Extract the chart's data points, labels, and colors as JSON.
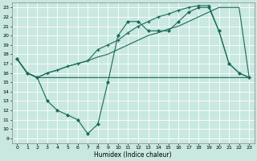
{
  "xlabel": "Humidex (Indice chaleur)",
  "bg_color": "#c8e8e0",
  "grid_color": "#ffffff",
  "line_color": "#1a6a5a",
  "xlim": [
    -0.5,
    23.5
  ],
  "ylim": [
    8.5,
    23.5
  ],
  "yticks": [
    9,
    10,
    11,
    12,
    13,
    14,
    15,
    16,
    17,
    18,
    19,
    20,
    21,
    22,
    23
  ],
  "xticks": [
    0,
    1,
    2,
    3,
    4,
    5,
    6,
    7,
    8,
    9,
    10,
    11,
    12,
    13,
    14,
    15,
    16,
    17,
    18,
    19,
    20,
    21,
    22,
    23
  ],
  "line1_x": [
    0,
    1,
    2,
    3,
    4,
    5,
    6,
    7,
    8,
    9,
    10,
    11,
    12,
    13,
    14,
    15,
    16,
    17,
    18,
    19,
    20,
    21,
    22,
    23
  ],
  "line1_y": [
    17.5,
    16.0,
    15.5,
    15.5,
    15.5,
    15.5,
    15.5,
    15.5,
    15.5,
    15.5,
    15.5,
    15.5,
    15.5,
    15.5,
    15.5,
    15.5,
    15.5,
    15.5,
    15.5,
    15.5,
    15.5,
    15.5,
    15.5,
    15.5
  ],
  "line2_x": [
    0,
    1,
    2,
    3,
    4,
    5,
    6,
    7,
    8,
    9,
    10,
    11,
    12,
    13,
    14,
    15,
    16,
    17,
    18,
    19,
    20,
    21,
    22,
    23
  ],
  "line2_y": [
    17.5,
    16.0,
    15.5,
    16.0,
    16.3,
    16.7,
    17.0,
    17.3,
    17.7,
    18.0,
    18.5,
    19.0,
    19.5,
    20.0,
    20.3,
    20.7,
    21.0,
    21.5,
    22.0,
    22.5,
    23.0,
    23.0,
    23.0,
    15.5
  ],
  "line3_x": [
    0,
    1,
    2,
    3,
    4,
    5,
    6,
    7,
    8,
    9,
    10,
    11,
    12,
    13,
    14,
    15,
    16,
    17,
    18,
    19,
    20,
    21,
    22,
    23
  ],
  "line3_y": [
    17.5,
    16.0,
    15.5,
    13.0,
    12.0,
    11.5,
    11.0,
    9.5,
    10.5,
    15.0,
    20.0,
    21.5,
    21.5,
    20.5,
    20.5,
    20.5,
    21.5,
    22.5,
    23.0,
    23.0,
    20.5,
    17.0,
    16.0,
    15.5
  ],
  "line4_x": [
    0,
    1,
    2,
    3,
    4,
    5,
    6,
    7,
    8,
    9,
    10,
    11,
    12,
    13,
    14,
    15,
    16,
    17,
    18,
    19,
    20,
    21,
    22,
    23
  ],
  "line4_y": [
    17.5,
    16.0,
    15.5,
    16.0,
    16.3,
    16.7,
    17.0,
    17.3,
    18.5,
    19.0,
    19.5,
    20.3,
    21.0,
    21.5,
    22.0,
    22.3,
    22.7,
    23.0,
    23.2,
    23.2,
    20.5,
    17.0,
    16.0,
    15.5
  ]
}
